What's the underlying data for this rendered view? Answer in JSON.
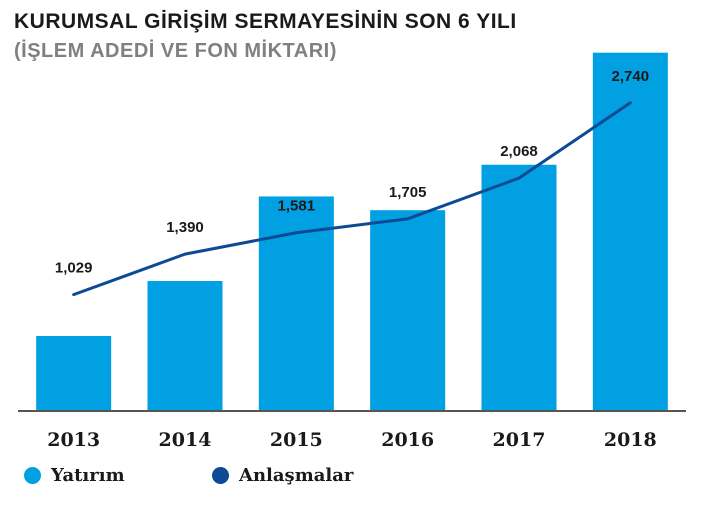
{
  "header": {
    "title": "KURUMSAL GİRİŞİM SERMAYESİNİN SON 6 YILI",
    "subtitle": "(İŞLEM ADEDİ VE FON MİKTARI)"
  },
  "legend": [
    {
      "label": "Yatırım",
      "color": "#00a0e3"
    },
    {
      "label": "Anlaşmalar",
      "color": "#0d4a94"
    }
  ],
  "chart_data": {
    "type": "bar",
    "categories": [
      "2013",
      "2014",
      "2015",
      "2016",
      "2017",
      "2018"
    ],
    "series": [
      {
        "name": "Yatırım",
        "type": "bar",
        "color": "#00a0e3",
        "values": [
          70,
          122,
          202,
          189,
          232,
          338
        ]
      },
      {
        "name": "Anlaşmalar",
        "type": "line",
        "color": "#0d4a94",
        "values": [
          1029,
          1390,
          1581,
          1705,
          2068,
          2740
        ],
        "labels": [
          "1,029",
          "1,390",
          "1,581",
          "1,705",
          "2,068",
          "2,740"
        ]
      }
    ],
    "bar_ylim": [
      0,
      350
    ],
    "line_ylim": [
      0,
      3300
    ],
    "grid": false,
    "legend_position": "bottom-left"
  }
}
